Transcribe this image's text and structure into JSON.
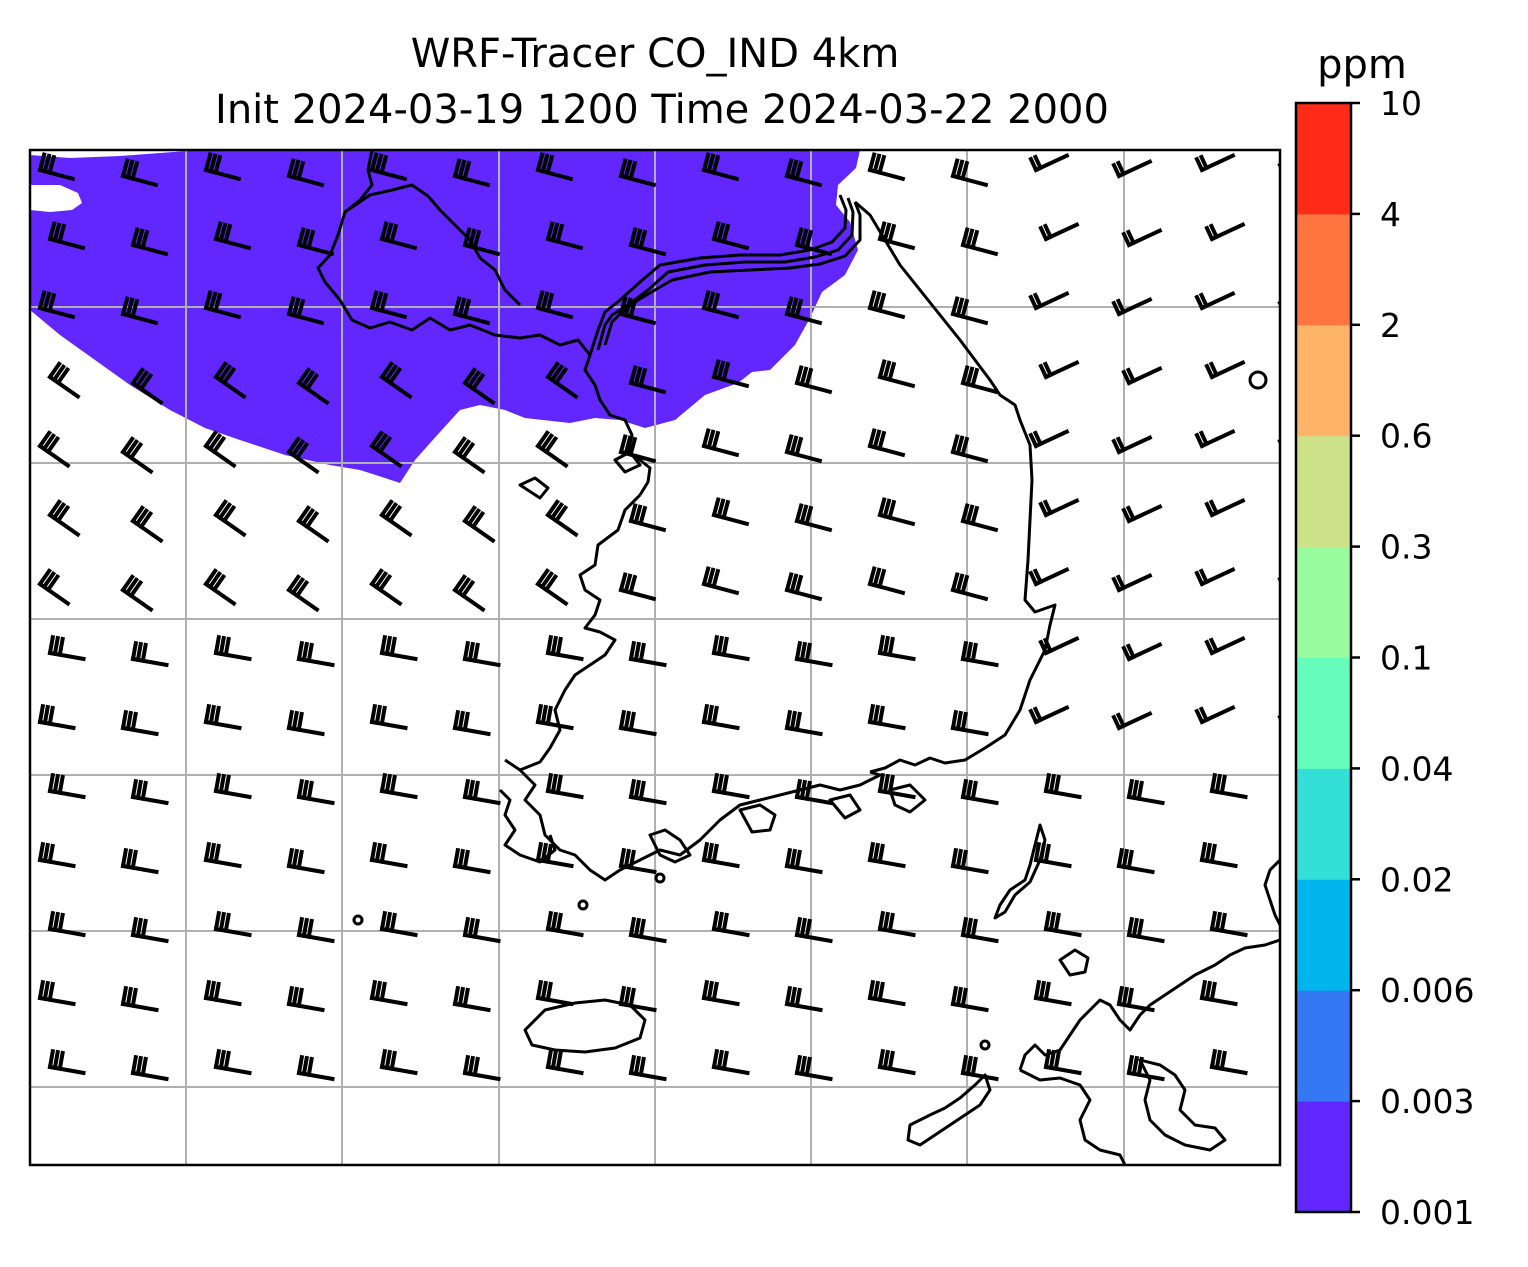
{
  "title_line1": "WRF-Tracer CO_IND 4km",
  "title_line2": "Init 2024-03-19 1200 Time 2024-03-22 2000",
  "colorbar": {
    "unit": "ppm",
    "levels": [
      "0.001",
      "0.003",
      "0.006",
      "0.02",
      "0.04",
      "0.1",
      "0.3",
      "0.6",
      "2",
      "4",
      "10"
    ],
    "colors": [
      "#6226ff",
      "#3478f4",
      "#00b4ec",
      "#33dfd6",
      "#66fcbc",
      "#98fc9f",
      "#cce188",
      "#feb468",
      "#ff7540",
      "#ff2a18"
    ]
  },
  "plume_color": "#6226ff",
  "map": {
    "grid": true,
    "wind_barbs": true,
    "concentration_field": "CO_IND tracer (shaded where >= 0.001 ppm)"
  }
}
